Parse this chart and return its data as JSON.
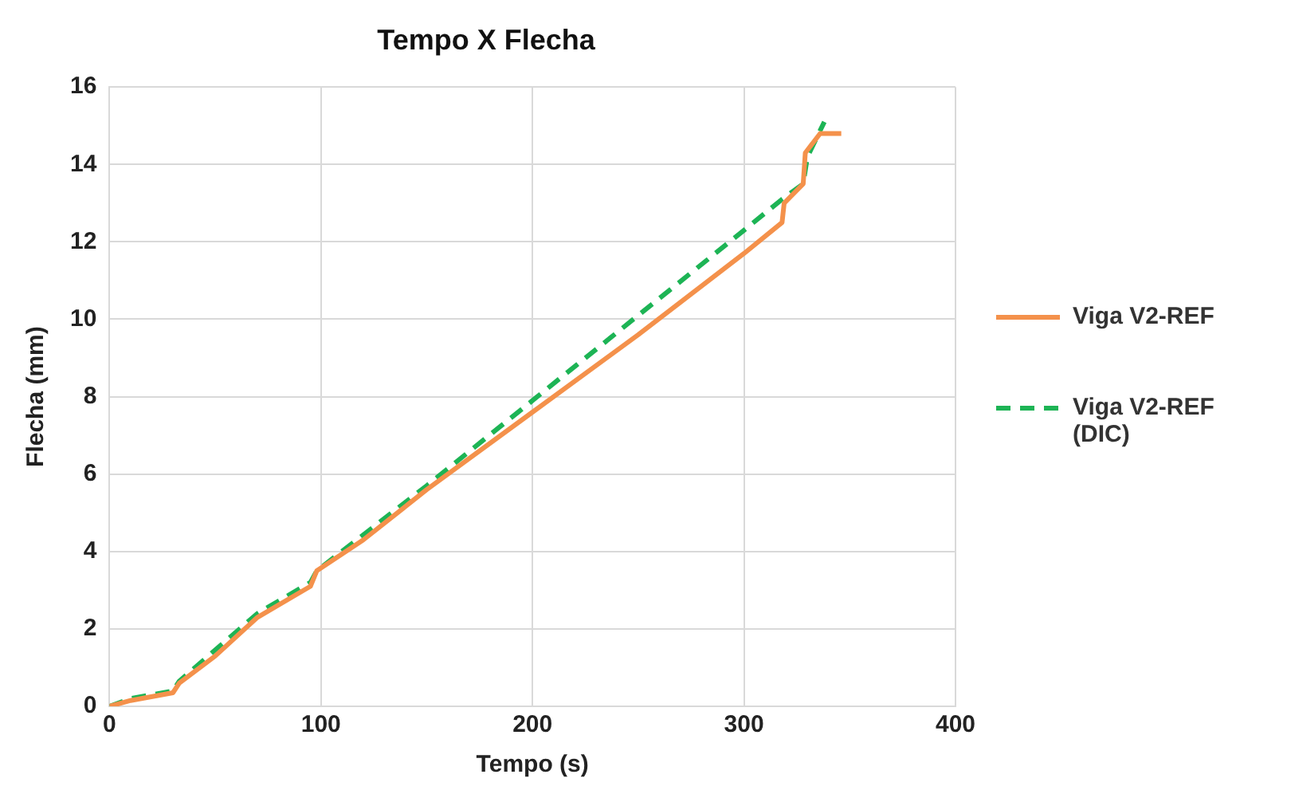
{
  "chart_data": {
    "type": "line",
    "title": "Tempo X Flecha",
    "xlabel": "Tempo (s)",
    "ylabel": "Flecha (mm)",
    "xlim": [
      0,
      400
    ],
    "xticks": [
      0,
      100,
      200,
      300,
      400
    ],
    "ylim": [
      0,
      16
    ],
    "yticks": [
      0,
      2,
      4,
      6,
      8,
      10,
      12,
      14,
      16
    ],
    "grid": true,
    "legend": "right",
    "marker": "none",
    "series": [
      {
        "name": "Viga V2-REF",
        "color": "#f4914b",
        "line_style": "solid",
        "x": [
          0,
          10,
          30,
          33,
          50,
          70,
          95,
          98,
          120,
          150,
          200,
          250,
          300,
          318,
          319,
          328,
          329,
          336,
          346
        ],
        "values": [
          0,
          0.15,
          0.35,
          0.6,
          1.3,
          2.3,
          3.1,
          3.5,
          4.3,
          5.6,
          7.6,
          9.6,
          11.7,
          12.5,
          13.0,
          13.5,
          14.3,
          14.8,
          14.8
        ]
      },
      {
        "name": "Viga V2-REF (DIC)",
        "color": "#1db455",
        "line_style": "dashed",
        "x": [
          0,
          10,
          30,
          33,
          70,
          95,
          98,
          150,
          200,
          250,
          300,
          318,
          328,
          330,
          338
        ],
        "values": [
          0,
          0.2,
          0.4,
          0.65,
          2.4,
          3.2,
          3.5,
          5.7,
          7.9,
          10.1,
          12.3,
          13.1,
          13.5,
          14.2,
          15.1
        ]
      }
    ]
  }
}
